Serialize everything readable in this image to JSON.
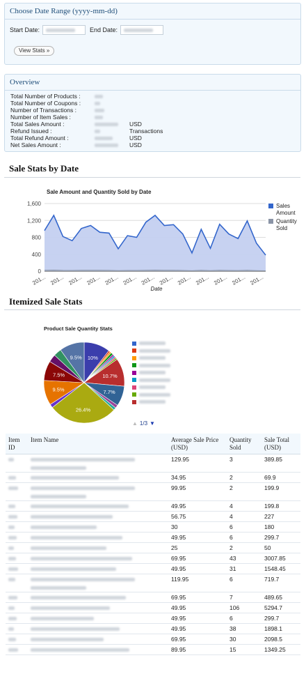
{
  "date_range": {
    "title": "Choose Date Range (yyyy-mm-dd)",
    "start_label": "Start Date:",
    "end_label": "End Date:",
    "button_label": "View Stats »"
  },
  "overview": {
    "title": "Overview",
    "rows": [
      {
        "label": "Total Number of Products :",
        "unit": ""
      },
      {
        "label": "Total Number of Coupons :",
        "unit": ""
      },
      {
        "label": "Number of Transactions :",
        "unit": ""
      },
      {
        "label": "Number of Item Sales :",
        "unit": ""
      },
      {
        "label": "Total Sales Amount :",
        "unit": "USD"
      },
      {
        "label": "Refund Issued :",
        "unit": "Transactions"
      },
      {
        "label": "Total Refund Amount :",
        "unit": "USD"
      },
      {
        "label": "Net Sales Amount :",
        "unit": "USD"
      }
    ]
  },
  "sale_stats": {
    "heading": "Sale Stats by Date"
  },
  "itemized": {
    "heading": "Itemized Sale Stats",
    "pager": "1/3",
    "table_headers": {
      "id": "Item ID",
      "name": "Item Name",
      "avg": "Average Sale Price (USD)",
      "qty": "Quantity Sold",
      "total": "Sale Total (USD)"
    },
    "rows": [
      {
        "avg": "129.95",
        "qty": "3",
        "total": "389.85",
        "lines": 2
      },
      {
        "avg": "34.95",
        "qty": "2",
        "total": "69.9",
        "lines": 1
      },
      {
        "avg": "99.95",
        "qty": "2",
        "total": "199.9",
        "lines": 2
      },
      {
        "avg": "49.95",
        "qty": "4",
        "total": "199.8",
        "lines": 1
      },
      {
        "avg": "56.75",
        "qty": "4",
        "total": "227",
        "lines": 1
      },
      {
        "avg": "30",
        "qty": "6",
        "total": "180",
        "lines": 1
      },
      {
        "avg": "49.95",
        "qty": "6",
        "total": "299.7",
        "lines": 1
      },
      {
        "avg": "25",
        "qty": "2",
        "total": "50",
        "lines": 1
      },
      {
        "avg": "69.95",
        "qty": "43",
        "total": "3007.85",
        "lines": 1
      },
      {
        "avg": "49.95",
        "qty": "31",
        "total": "1548.45",
        "lines": 1
      },
      {
        "avg": "119.95",
        "qty": "6",
        "total": "719.7",
        "lines": 2
      },
      {
        "avg": "69.95",
        "qty": "7",
        "total": "489.65",
        "lines": 1
      },
      {
        "avg": "49.95",
        "qty": "106",
        "total": "5294.7",
        "lines": 1
      },
      {
        "avg": "49.95",
        "qty": "6",
        "total": "299.7",
        "lines": 1
      },
      {
        "avg": "49.95",
        "qty": "38",
        "total": "1898.1",
        "lines": 1
      },
      {
        "avg": "69.95",
        "qty": "30",
        "total": "2098.5",
        "lines": 1
      },
      {
        "avg": "89.95",
        "qty": "15",
        "total": "1349.25",
        "lines": 1
      }
    ]
  },
  "chart_data": [
    {
      "type": "area",
      "title": "Sale Amount and Quantity Sold by Date",
      "xlabel": "Date",
      "ylabel": "",
      "ylim": [
        0,
        1600
      ],
      "yticks": [
        "0",
        "400",
        "800",
        "1,200",
        "1,600"
      ],
      "xtick_label": "201...",
      "xtick_count": 13,
      "legend_position": "right",
      "series": [
        {
          "name": "Sales Amount",
          "color": "#3366cc",
          "fill": "#c4d0f0",
          "values": [
            960,
            1320,
            820,
            720,
            1010,
            1080,
            920,
            900,
            530,
            840,
            800,
            1160,
            1320,
            1080,
            1100,
            880,
            430,
            990,
            540,
            1110,
            880,
            770,
            1190,
            660,
            380
          ]
        },
        {
          "name": "Quantity Sold",
          "color": "#8a94a6",
          "fill": "#8a94a6",
          "values": [
            20,
            25,
            18,
            16,
            20,
            22,
            19,
            18,
            12,
            17,
            16,
            22,
            25,
            20,
            21,
            17,
            10,
            19,
            12,
            21,
            17,
            15,
            22,
            13,
            9
          ]
        }
      ],
      "grid": true
    },
    {
      "type": "pie",
      "title": "Product Sale Quantity Stats",
      "slices": [
        {
          "value": 10,
          "label": "10%",
          "color": "#3b3eac"
        },
        {
          "value": 0.6,
          "label": "",
          "color": "#dc3912"
        },
        {
          "value": 0.6,
          "label": "",
          "color": "#ff9900"
        },
        {
          "value": 0.9,
          "label": "",
          "color": "#109618"
        },
        {
          "value": 0.6,
          "label": "",
          "color": "#990099"
        },
        {
          "value": 0.6,
          "label": "",
          "color": "#0099c6"
        },
        {
          "value": 0.6,
          "label": "",
          "color": "#dd4477"
        },
        {
          "value": 0.6,
          "label": "",
          "color": "#66aa00"
        },
        {
          "value": 10.7,
          "label": "10.7%",
          "color": "#b82e2e"
        },
        {
          "value": 7.7,
          "label": "7.7%",
          "color": "#316395"
        },
        {
          "value": 1.2,
          "label": "",
          "color": "#994499"
        },
        {
          "value": 1.0,
          "label": "",
          "color": "#22aa99"
        },
        {
          "value": 26.4,
          "label": "26.4%",
          "color": "#aaaa11"
        },
        {
          "value": 1.4,
          "label": "",
          "color": "#6633cc"
        },
        {
          "value": 9.5,
          "label": "9.5%",
          "color": "#e67300"
        },
        {
          "value": 7.5,
          "label": "7.5%",
          "color": "#8b0707"
        },
        {
          "value": 3.0,
          "label": "",
          "color": "#651067"
        },
        {
          "value": 3.0,
          "label": "",
          "color": "#329262"
        },
        {
          "value": 9.5,
          "label": "9.5%",
          "color": "#5574a6"
        }
      ],
      "legend_colors": [
        "#3366cc",
        "#dc3912",
        "#ff9900",
        "#109618",
        "#990099",
        "#0099c6",
        "#dd4477",
        "#66aa00",
        "#b82e2e"
      ]
    }
  ]
}
